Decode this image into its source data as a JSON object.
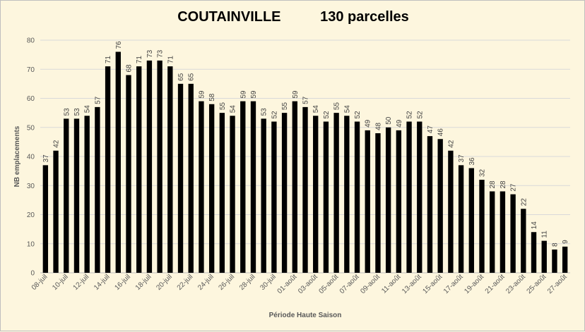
{
  "chart_data": {
    "type": "bar",
    "title": "COUTAINVILLE",
    "subtitle": "130 parcelles",
    "xlabel": "Période Haute Saison",
    "ylabel": "NB emplacements",
    "ylim": [
      0,
      80
    ],
    "yticks": [
      0,
      10,
      20,
      30,
      40,
      50,
      60,
      70,
      80
    ],
    "grid": true,
    "legend": "none",
    "bar_color": "#000000",
    "categories": [
      "08-juil",
      "09-juil",
      "10-juil",
      "11-juil",
      "12-juil",
      "13-juil",
      "14-juil",
      "15-juil",
      "16-juil",
      "17-juil",
      "18-juil",
      "19-juil",
      "20-juil",
      "21-juil",
      "22-juil",
      "23-juil",
      "24-juil",
      "25-juil",
      "26-juil",
      "27-juil",
      "28-juil",
      "29-juil",
      "30-juil",
      "31-juil",
      "01-août",
      "02-août",
      "03-août",
      "04-août",
      "05-août",
      "06-août",
      "07-août",
      "08-août",
      "09-août",
      "10-août",
      "11-août",
      "12-août",
      "13-août",
      "14-août",
      "15-août",
      "16-août",
      "17-août",
      "18-août",
      "19-août",
      "20-août",
      "21-août",
      "22-août",
      "23-août",
      "24-août",
      "25-août",
      "26-août",
      "27-août"
    ],
    "x_tick_labels": [
      "08-juil",
      "10-juil",
      "12-juil",
      "14-juil",
      "16-juil",
      "18-juil",
      "20-juil",
      "22-juil",
      "24-juil",
      "26-juil",
      "28-juil",
      "30-juil",
      "01-août",
      "03-août",
      "05-août",
      "07-août",
      "09-août",
      "11-août",
      "13-août",
      "15-août",
      "17-août",
      "19-août",
      "21-août",
      "23-août",
      "25-août",
      "27-août"
    ],
    "values": [
      37,
      42,
      53,
      53,
      54,
      57,
      71,
      76,
      68,
      71,
      73,
      73,
      71,
      65,
      65,
      59,
      58,
      55,
      54,
      59,
      59,
      53,
      52,
      55,
      59,
      57,
      54,
      52,
      55,
      54,
      52,
      49,
      48,
      50,
      49,
      52,
      52,
      47,
      46,
      42,
      37,
      36,
      32,
      28,
      28,
      27,
      22,
      14,
      11,
      8,
      9
    ]
  }
}
